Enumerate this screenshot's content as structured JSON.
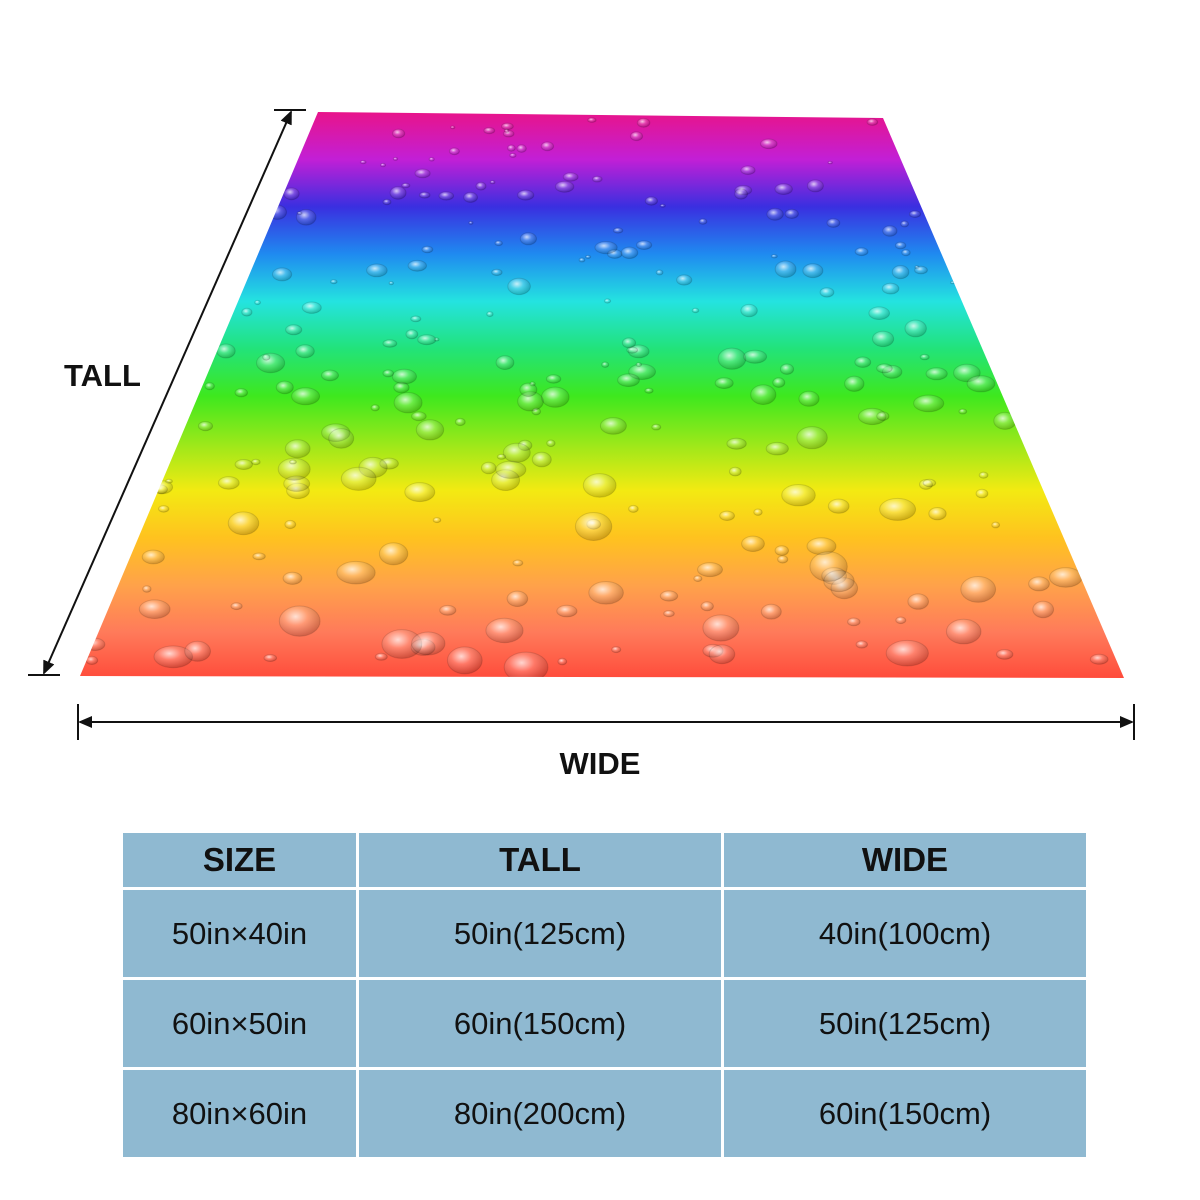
{
  "diagram": {
    "tall_label": "TALL",
    "wide_label": "WIDE"
  },
  "product": {
    "pattern": "rainbow-water-droplets",
    "gradient_colors": [
      "#e8148a",
      "#c21fd6",
      "#3a2fe0",
      "#1f8af0",
      "#24e3e0",
      "#22e37a",
      "#3ee81e",
      "#9ae81a",
      "#f3ea12",
      "#ffc21f",
      "#ffa24a",
      "#ff7a5a",
      "#ff4a3a"
    ]
  },
  "size_table": {
    "headers": [
      "SIZE",
      "TALL",
      "WIDE"
    ],
    "rows": [
      [
        "50in×40in",
        "50in(125cm)",
        "40in(100cm)"
      ],
      [
        "60in×50in",
        "60in(150cm)",
        "50in(125cm)"
      ],
      [
        "80in×60in",
        "80in(200cm)",
        "60in(150cm)"
      ]
    ],
    "cell_color": "#8fb9d1"
  }
}
